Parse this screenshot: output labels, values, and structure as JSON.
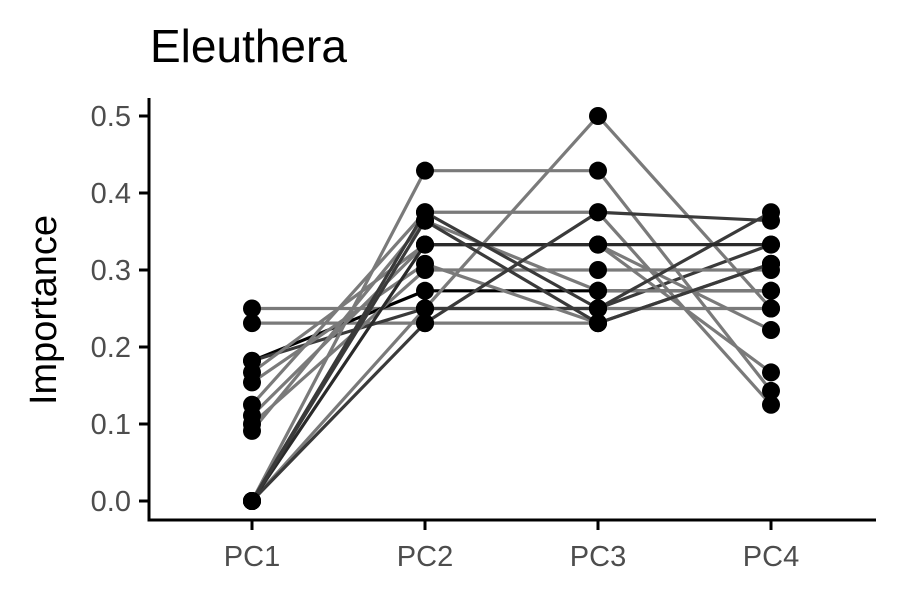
{
  "chart_data": {
    "type": "line",
    "title": "Eleuthera",
    "xlabel": "",
    "ylabel": "Importance",
    "categories": [
      "PC1",
      "PC2",
      "PC3",
      "PC4"
    ],
    "ylim": [
      0,
      0.5
    ],
    "yticks": [
      0.0,
      0.1,
      0.2,
      0.3,
      0.4,
      0.5
    ],
    "ytick_labels": [
      "0.0",
      "0.1",
      "0.2",
      "0.3",
      "0.4",
      "0.5"
    ],
    "grid": false,
    "legend": "none",
    "point_color": "#000000",
    "series": [
      {
        "values": [
          0.25,
          0.25,
          0.25,
          0.25
        ],
        "color": "#7a7a7a"
      },
      {
        "values": [
          0.231,
          0.231,
          0.231,
          0.308
        ],
        "color": "#7a7a7a"
      },
      {
        "values": [
          0.182,
          0.273,
          0.273,
          0.273
        ],
        "color": "#000000"
      },
      {
        "values": [
          0.182,
          0.25,
          0.25,
          0.333
        ],
        "color": "#3a3a3a"
      },
      {
        "values": [
          0.167,
          0.333,
          0.333,
          0.167
        ],
        "color": "#7a7a7a"
      },
      {
        "values": [
          0.154,
          0.308,
          0.231,
          0.308
        ],
        "color": "#7a7a7a"
      },
      {
        "values": [
          0.125,
          0.375,
          0.375,
          0.125
        ],
        "color": "#7a7a7a"
      },
      {
        "values": [
          0.111,
          0.333,
          0.333,
          0.222
        ],
        "color": "#7a7a7a"
      },
      {
        "values": [
          0.1,
          0.3,
          0.3,
          0.3
        ],
        "color": "#7a7a7a"
      },
      {
        "values": [
          0.091,
          0.364,
          0.273,
          0.273
        ],
        "color": "#7a7a7a"
      },
      {
        "values": [
          0.0,
          0.429,
          0.429,
          0.143
        ],
        "color": "#7a7a7a"
      },
      {
        "values": [
          0.0,
          0.25,
          0.5,
          0.25
        ],
        "color": "#7a7a7a"
      },
      {
        "values": [
          0.0,
          0.375,
          0.25,
          0.375
        ],
        "color": "#3a3a3a"
      },
      {
        "values": [
          0.0,
          0.333,
          0.333,
          0.333
        ],
        "color": "#2a2a2a"
      },
      {
        "values": [
          0.0,
          0.231,
          0.375,
          0.364
        ],
        "color": "#3a3a3a"
      },
      {
        "values": [
          0.0,
          0.364,
          0.231,
          0.308
        ],
        "color": "#3a3a3a"
      }
    ]
  }
}
